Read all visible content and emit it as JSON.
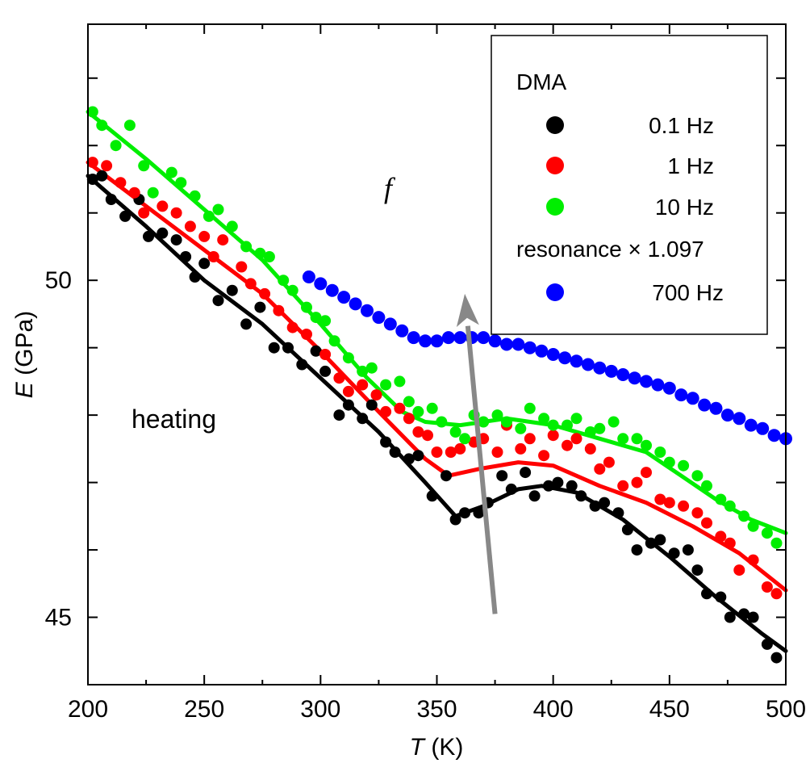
{
  "chart_data": {
    "type": "scatter",
    "title": "",
    "xlabel_var": "T",
    "xlabel_unit": " (K)",
    "ylabel_var": "E",
    "ylabel_unit": " (GPa)",
    "xlim": [
      200,
      500
    ],
    "ylim": [
      44.0,
      53.8
    ],
    "x_ticks": [
      200,
      250,
      300,
      350,
      400,
      450,
      500
    ],
    "y_ticks_labeled": [
      45,
      50
    ],
    "y_ticks_minor": [
      46,
      47,
      48,
      49,
      51,
      52,
      53
    ],
    "grid": false,
    "legend_position": "top-right",
    "legend": {
      "dma_header": "DMA",
      "resonance_header": "resonance × 1.097",
      "entries": [
        {
          "label": "0.1 Hz",
          "color": "#000000"
        },
        {
          "label": "1 Hz",
          "color": "#ff0000"
        },
        {
          "label": "10 Hz",
          "color": "#00ee00"
        },
        {
          "label": "700 Hz",
          "color": "#0000ff"
        }
      ]
    },
    "annotations": {
      "heating": "heating",
      "arrow_label": "f",
      "arrow_from": [
        375,
        45.05
      ],
      "arrow_to": [
        362,
        49.8
      ]
    },
    "series": [
      {
        "name": "0.1 Hz",
        "color": "#000000",
        "points": [
          [
            202,
            51.5
          ],
          [
            206,
            51.55
          ],
          [
            210,
            51.2
          ],
          [
            216,
            50.95
          ],
          [
            222,
            51.2
          ],
          [
            226,
            50.65
          ],
          [
            232,
            50.7
          ],
          [
            238,
            50.6
          ],
          [
            242,
            50.35
          ],
          [
            246,
            50.05
          ],
          [
            250,
            50.25
          ],
          [
            256,
            49.7
          ],
          [
            262,
            49.85
          ],
          [
            268,
            49.35
          ],
          [
            274,
            49.6
          ],
          [
            280,
            49.0
          ],
          [
            286,
            49.0
          ],
          [
            292,
            48.75
          ],
          [
            298,
            48.95
          ],
          [
            302,
            48.65
          ],
          [
            308,
            48.0
          ],
          [
            312,
            48.15
          ],
          [
            318,
            47.95
          ],
          [
            322,
            48.15
          ],
          [
            328,
            47.6
          ],
          [
            332,
            47.45
          ],
          [
            338,
            47.35
          ],
          [
            342,
            47.4
          ],
          [
            348,
            46.8
          ],
          [
            354,
            47.1
          ],
          [
            358,
            46.45
          ],
          [
            362,
            46.55
          ],
          [
            368,
            46.55
          ],
          [
            372,
            46.7
          ],
          [
            378,
            47.1
          ],
          [
            382,
            46.9
          ],
          [
            388,
            47.15
          ],
          [
            392,
            46.8
          ],
          [
            398,
            46.95
          ],
          [
            402,
            47.0
          ],
          [
            408,
            46.95
          ],
          [
            412,
            46.8
          ],
          [
            418,
            46.65
          ],
          [
            422,
            46.7
          ],
          [
            428,
            46.55
          ],
          [
            432,
            46.3
          ],
          [
            436,
            46.0
          ],
          [
            442,
            46.1
          ],
          [
            446,
            46.15
          ],
          [
            452,
            45.95
          ],
          [
            458,
            46.0
          ],
          [
            462,
            45.7
          ],
          [
            466,
            45.35
          ],
          [
            472,
            45.3
          ],
          [
            476,
            45.0
          ],
          [
            482,
            45.05
          ],
          [
            486,
            45.0
          ],
          [
            492,
            44.6
          ],
          [
            496,
            44.4
          ]
        ],
        "curve": [
          [
            200,
            51.55
          ],
          [
            225,
            50.8
          ],
          [
            250,
            50.0
          ],
          [
            275,
            49.35
          ],
          [
            300,
            48.55
          ],
          [
            325,
            47.75
          ],
          [
            345,
            47.0
          ],
          [
            358,
            46.5
          ],
          [
            370,
            46.65
          ],
          [
            385,
            46.9
          ],
          [
            395,
            46.95
          ],
          [
            410,
            46.85
          ],
          [
            430,
            46.45
          ],
          [
            450,
            45.9
          ],
          [
            470,
            45.3
          ],
          [
            490,
            44.75
          ],
          [
            500,
            44.5
          ]
        ]
      },
      {
        "name": "1 Hz",
        "color": "#ff0000",
        "points": [
          [
            202,
            51.75
          ],
          [
            208,
            51.7
          ],
          [
            214,
            51.45
          ],
          [
            220,
            51.3
          ],
          [
            224,
            51.0
          ],
          [
            232,
            51.1
          ],
          [
            238,
            51.0
          ],
          [
            244,
            50.8
          ],
          [
            250,
            50.65
          ],
          [
            254,
            50.35
          ],
          [
            258,
            50.6
          ],
          [
            266,
            50.2
          ],
          [
            270,
            49.95
          ],
          [
            276,
            49.8
          ],
          [
            282,
            49.55
          ],
          [
            288,
            49.3
          ],
          [
            294,
            49.2
          ],
          [
            302,
            48.9
          ],
          [
            308,
            48.55
          ],
          [
            312,
            48.35
          ],
          [
            318,
            48.45
          ],
          [
            324,
            48.3
          ],
          [
            328,
            48.05
          ],
          [
            334,
            48.1
          ],
          [
            338,
            47.95
          ],
          [
            342,
            47.75
          ],
          [
            346,
            47.7
          ],
          [
            350,
            47.45
          ],
          [
            356,
            47.45
          ],
          [
            360,
            47.5
          ],
          [
            366,
            47.6
          ],
          [
            370,
            47.65
          ],
          [
            376,
            47.45
          ],
          [
            380,
            47.85
          ],
          [
            386,
            47.5
          ],
          [
            390,
            47.65
          ],
          [
            396,
            47.4
          ],
          [
            400,
            47.7
          ],
          [
            406,
            47.55
          ],
          [
            410,
            47.65
          ],
          [
            416,
            47.5
          ],
          [
            420,
            47.2
          ],
          [
            424,
            47.3
          ],
          [
            430,
            46.95
          ],
          [
            436,
            47.0
          ],
          [
            440,
            47.15
          ],
          [
            446,
            46.75
          ],
          [
            450,
            46.7
          ],
          [
            456,
            46.65
          ],
          [
            462,
            46.55
          ],
          [
            466,
            46.4
          ],
          [
            472,
            46.2
          ],
          [
            476,
            46.1
          ],
          [
            480,
            45.7
          ],
          [
            486,
            45.85
          ],
          [
            492,
            45.45
          ],
          [
            496,
            45.35
          ]
        ],
        "curve": [
          [
            200,
            51.75
          ],
          [
            225,
            51.1
          ],
          [
            250,
            50.45
          ],
          [
            275,
            49.8
          ],
          [
            300,
            48.95
          ],
          [
            325,
            48.05
          ],
          [
            345,
            47.35
          ],
          [
            355,
            47.1
          ],
          [
            368,
            47.2
          ],
          [
            385,
            47.3
          ],
          [
            400,
            47.25
          ],
          [
            420,
            46.95
          ],
          [
            440,
            46.7
          ],
          [
            460,
            46.35
          ],
          [
            480,
            45.95
          ],
          [
            500,
            45.4
          ]
        ]
      },
      {
        "name": "10 Hz",
        "color": "#00ee00",
        "points": [
          [
            202,
            52.5
          ],
          [
            206,
            52.3
          ],
          [
            212,
            52.0
          ],
          [
            218,
            52.3
          ],
          [
            224,
            51.7
          ],
          [
            228,
            51.3
          ],
          [
            236,
            51.6
          ],
          [
            240,
            51.45
          ],
          [
            246,
            51.25
          ],
          [
            252,
            50.95
          ],
          [
            256,
            51.05
          ],
          [
            262,
            50.8
          ],
          [
            268,
            50.5
          ],
          [
            274,
            50.4
          ],
          [
            278,
            50.35
          ],
          [
            284,
            50.0
          ],
          [
            288,
            49.85
          ],
          [
            294,
            49.6
          ],
          [
            298,
            49.45
          ],
          [
            302,
            49.4
          ],
          [
            306,
            49.1
          ],
          [
            312,
            48.85
          ],
          [
            318,
            48.65
          ],
          [
            322,
            48.7
          ],
          [
            328,
            48.45
          ],
          [
            334,
            48.5
          ],
          [
            338,
            48.2
          ],
          [
            342,
            48.05
          ],
          [
            348,
            48.1
          ],
          [
            352,
            47.9
          ],
          [
            358,
            47.75
          ],
          [
            362,
            47.65
          ],
          [
            366,
            48.0
          ],
          [
            370,
            47.9
          ],
          [
            376,
            48.0
          ],
          [
            380,
            47.9
          ],
          [
            386,
            47.8
          ],
          [
            390,
            48.1
          ],
          [
            396,
            47.95
          ],
          [
            400,
            47.85
          ],
          [
            406,
            47.85
          ],
          [
            410,
            47.95
          ],
          [
            416,
            47.75
          ],
          [
            420,
            47.8
          ],
          [
            426,
            47.9
          ],
          [
            430,
            47.65
          ],
          [
            436,
            47.65
          ],
          [
            440,
            47.55
          ],
          [
            446,
            47.45
          ],
          [
            450,
            47.3
          ],
          [
            456,
            47.25
          ],
          [
            462,
            47.1
          ],
          [
            466,
            46.95
          ],
          [
            472,
            46.75
          ],
          [
            476,
            46.65
          ],
          [
            482,
            46.5
          ],
          [
            486,
            46.35
          ],
          [
            492,
            46.25
          ],
          [
            496,
            46.1
          ]
        ],
        "curve": [
          [
            200,
            52.5
          ],
          [
            225,
            51.8
          ],
          [
            250,
            51.05
          ],
          [
            275,
            50.3
          ],
          [
            300,
            49.35
          ],
          [
            320,
            48.55
          ],
          [
            335,
            48.05
          ],
          [
            345,
            47.9
          ],
          [
            360,
            47.85
          ],
          [
            380,
            47.95
          ],
          [
            400,
            47.85
          ],
          [
            420,
            47.65
          ],
          [
            440,
            47.45
          ],
          [
            455,
            47.1
          ],
          [
            470,
            46.75
          ],
          [
            485,
            46.45
          ],
          [
            500,
            46.25
          ]
        ]
      },
      {
        "name": "700 Hz",
        "color": "#0000ff",
        "points": [
          [
            295,
            50.05
          ],
          [
            300,
            49.95
          ],
          [
            305,
            49.85
          ],
          [
            310,
            49.75
          ],
          [
            315,
            49.65
          ],
          [
            320,
            49.55
          ],
          [
            325,
            49.45
          ],
          [
            330,
            49.35
          ],
          [
            335,
            49.25
          ],
          [
            340,
            49.15
          ],
          [
            345,
            49.1
          ],
          [
            350,
            49.1
          ],
          [
            355,
            49.15
          ],
          [
            360,
            49.15
          ],
          [
            365,
            49.15
          ],
          [
            370,
            49.15
          ],
          [
            375,
            49.1
          ],
          [
            380,
            49.05
          ],
          [
            385,
            49.05
          ],
          [
            390,
            49.0
          ],
          [
            395,
            48.95
          ],
          [
            400,
            48.9
          ],
          [
            405,
            48.85
          ],
          [
            410,
            48.8
          ],
          [
            415,
            48.75
          ],
          [
            420,
            48.7
          ],
          [
            425,
            48.65
          ],
          [
            430,
            48.6
          ],
          [
            435,
            48.55
          ],
          [
            440,
            48.5
          ],
          [
            445,
            48.45
          ],
          [
            450,
            48.4
          ],
          [
            455,
            48.3
          ],
          [
            460,
            48.25
          ],
          [
            465,
            48.15
          ],
          [
            470,
            48.1
          ],
          [
            475,
            48.0
          ],
          [
            480,
            47.95
          ],
          [
            485,
            47.85
          ],
          [
            490,
            47.8
          ],
          [
            495,
            47.7
          ],
          [
            500,
            47.65
          ]
        ],
        "curve": []
      }
    ]
  }
}
